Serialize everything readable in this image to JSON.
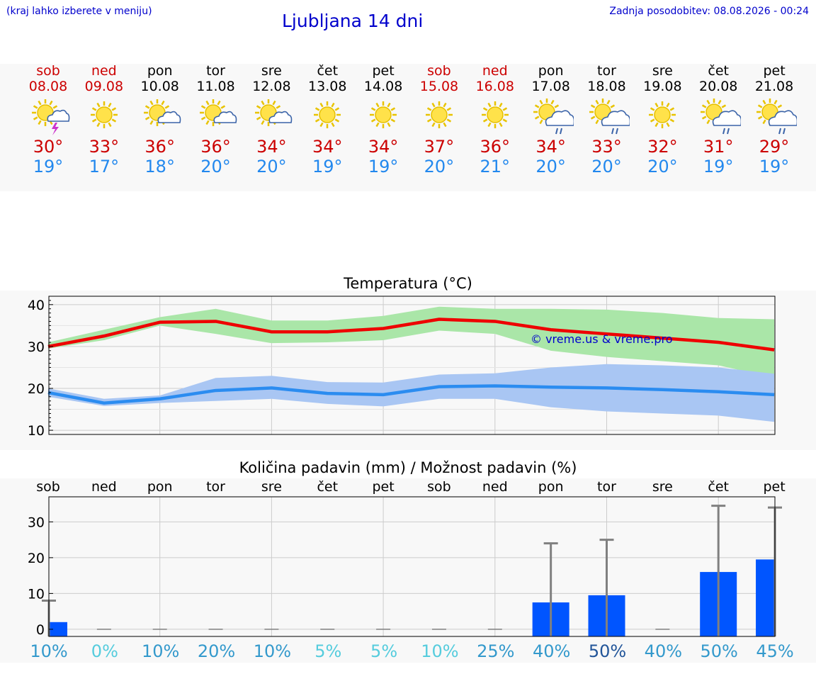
{
  "header": {
    "location_hint": "(kraj lahko izberete v meniju)",
    "title": "Ljubljana 14 dni",
    "updated": "Zadnja posodobitev: 08.08.2026 - 00:24"
  },
  "days": [
    {
      "name": "sob",
      "date": "08.08",
      "weekend": true,
      "icon": "sun-thunderstorm-icon",
      "tmax": "30°",
      "tmin": "19°"
    },
    {
      "name": "ned",
      "date": "09.08",
      "weekend": true,
      "icon": "sun-icon",
      "tmax": "33°",
      "tmin": "17°"
    },
    {
      "name": "pon",
      "date": "10.08",
      "weekend": false,
      "icon": "sun-cloud-icon",
      "tmax": "36°",
      "tmin": "18°"
    },
    {
      "name": "tor",
      "date": "11.08",
      "weekend": false,
      "icon": "sun-cloud-icon",
      "tmax": "36°",
      "tmin": "20°"
    },
    {
      "name": "sre",
      "date": "12.08",
      "weekend": false,
      "icon": "sun-cloud-icon",
      "tmax": "34°",
      "tmin": "20°"
    },
    {
      "name": "čet",
      "date": "13.08",
      "weekend": false,
      "icon": "sun-icon",
      "tmax": "34°",
      "tmin": "19°"
    },
    {
      "name": "pet",
      "date": "14.08",
      "weekend": false,
      "icon": "sun-icon",
      "tmax": "34°",
      "tmin": "19°"
    },
    {
      "name": "sob",
      "date": "15.08",
      "weekend": true,
      "icon": "sun-icon",
      "tmax": "37°",
      "tmin": "20°"
    },
    {
      "name": "ned",
      "date": "16.08",
      "weekend": true,
      "icon": "sun-icon",
      "tmax": "36°",
      "tmin": "21°"
    },
    {
      "name": "pon",
      "date": "17.08",
      "weekend": false,
      "icon": "sun-rain-cloud-icon",
      "tmax": "34°",
      "tmin": "20°"
    },
    {
      "name": "tor",
      "date": "18.08",
      "weekend": false,
      "icon": "sun-rain-cloud-icon",
      "tmax": "33°",
      "tmin": "20°"
    },
    {
      "name": "sre",
      "date": "19.08",
      "weekend": false,
      "icon": "sun-icon",
      "tmax": "32°",
      "tmin": "20°"
    },
    {
      "name": "čet",
      "date": "20.08",
      "weekend": false,
      "icon": "sun-rain-cloud-icon",
      "tmax": "31°",
      "tmin": "19°"
    },
    {
      "name": "pet",
      "date": "21.08",
      "weekend": false,
      "icon": "sun-rain-cloud-icon",
      "tmax": "29°",
      "tmin": "19°"
    }
  ],
  "colors": {
    "max_line": "#ee0000",
    "max_band": "#aae6a8",
    "min_line": "#2b8cf0",
    "min_band": "#a9c6f3",
    "precip_bar": "#0055ff",
    "whisker": "#808080"
  },
  "chart_data": [
    {
      "type": "line",
      "title": "Temperatura (°C)",
      "watermark": "© vreme.us & vreme.pro",
      "ylim": [
        9,
        42
      ],
      "yticks": [
        10,
        20,
        30,
        40
      ],
      "grid": true,
      "x": [
        0,
        1,
        2,
        3,
        4,
        5,
        6,
        7,
        8,
        9,
        10,
        11,
        12,
        13
      ],
      "series": [
        {
          "role": "max",
          "values": [
            30,
            32.5,
            35.8,
            36,
            33.5,
            33.5,
            34.3,
            36.5,
            36,
            34,
            33,
            32,
            31,
            29.2
          ],
          "band_low": [
            29.5,
            31.5,
            35,
            33,
            30.8,
            31,
            31.5,
            33.8,
            33,
            29,
            27.5,
            26.5,
            25.5,
            22.5
          ],
          "band_high": [
            31,
            34,
            37,
            39,
            36.2,
            36.2,
            37.3,
            39.5,
            39,
            39,
            38.8,
            38,
            36.8,
            36.5
          ]
        },
        {
          "role": "min",
          "values": [
            19,
            16.5,
            17.5,
            19.5,
            20.1,
            18.8,
            18.5,
            20.4,
            20.6,
            20.3,
            20.1,
            19.7,
            19.2,
            18.5
          ],
          "band_low": [
            18,
            15.8,
            16.5,
            17,
            17.5,
            16.3,
            15.7,
            17.5,
            17.5,
            15.5,
            14.5,
            14,
            13.5,
            12
          ],
          "band_high": [
            20,
            17.5,
            18.3,
            22.5,
            23,
            21.5,
            21.4,
            23.3,
            23.6,
            25,
            25.8,
            25.5,
            25,
            23.5
          ]
        }
      ]
    },
    {
      "type": "bar",
      "title": "Količina padavin (mm) / Možnost padavin (%)",
      "categories": [
        "sob",
        "ned",
        "pon",
        "tor",
        "sre",
        "čet",
        "pet",
        "sob",
        "ned",
        "pon",
        "tor",
        "sre",
        "čet",
        "pet"
      ],
      "ylim": [
        -2,
        37
      ],
      "yticks": [
        0,
        10,
        20,
        30
      ],
      "values": [
        2,
        0,
        0,
        0,
        0,
        0,
        0,
        0,
        0,
        7.5,
        9.5,
        0,
        16,
        19.5
      ],
      "whisker_high": [
        8,
        0,
        0,
        0,
        0,
        0,
        0,
        0,
        0,
        24,
        25,
        0,
        34.5,
        34
      ],
      "probability": [
        "10%",
        "0%",
        "10%",
        "20%",
        "10%",
        "5%",
        "5%",
        "10%",
        "25%",
        "40%",
        "50%",
        "40%",
        "50%",
        "45%"
      ],
      "probability_colors": [
        "#3399cc",
        "#55ccdd",
        "#3399cc",
        "#3399cc",
        "#3399cc",
        "#55ccdd",
        "#55ccdd",
        "#55ccdd",
        "#3399cc",
        "#3399cc",
        "#225599",
        "#3399cc",
        "#3399cc",
        "#3399cc"
      ]
    }
  ]
}
